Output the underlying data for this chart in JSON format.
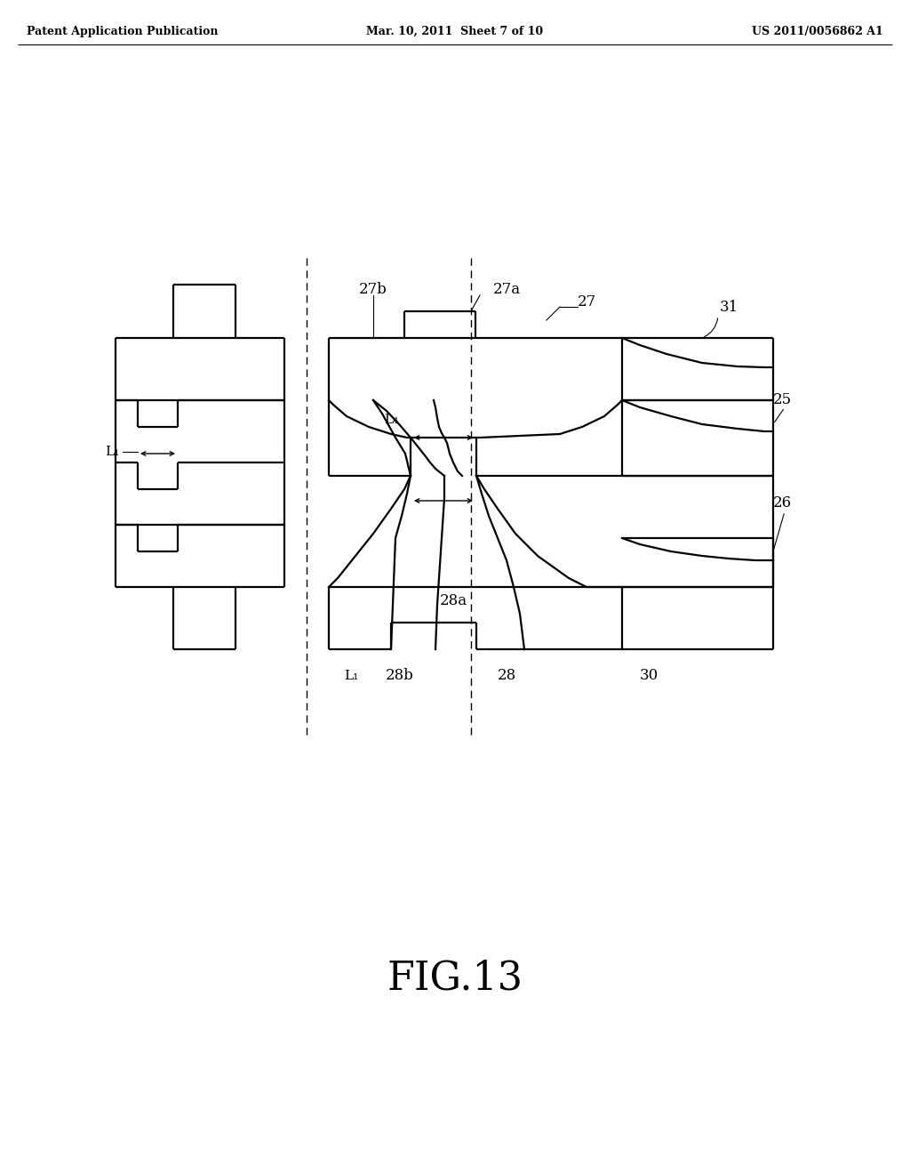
{
  "header_left": "Patent Application Publication",
  "header_center": "Mar. 10, 2011  Sheet 7 of 10",
  "header_right": "US 2011/0056862 A1",
  "title": "FIG.13",
  "bg_color": "#ffffff",
  "line_color": "#000000",
  "lw": 1.6
}
